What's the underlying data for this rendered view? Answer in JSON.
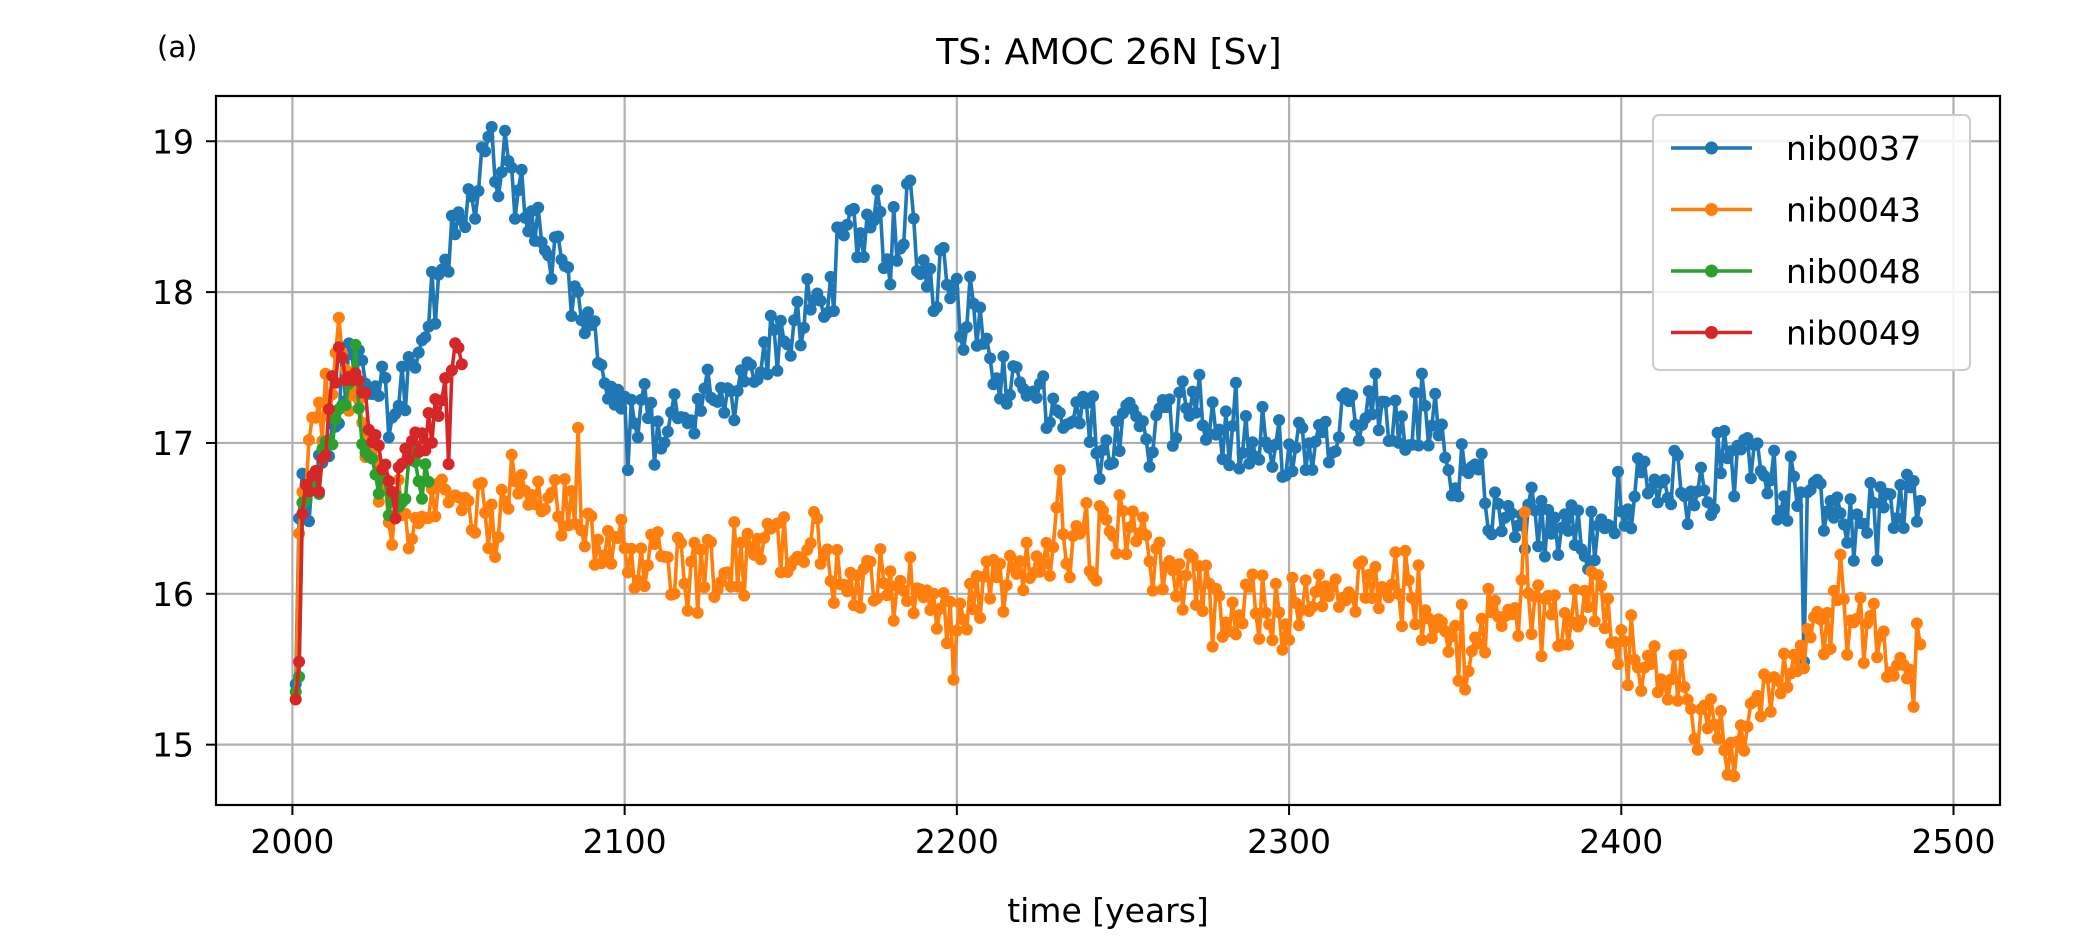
{
  "panel_label": "(a)",
  "chart_data": {
    "type": "line",
    "title": "TS: AMOC 26N [Sv]",
    "xlabel": "time [years]",
    "ylabel": "",
    "xlim": [
      1977,
      2514
    ],
    "ylim": [
      14.6,
      19.3
    ],
    "xticks": [
      2000,
      2100,
      2200,
      2300,
      2400,
      2500
    ],
    "yticks": [
      15,
      16,
      17,
      18,
      19
    ],
    "grid": true,
    "legend_position": "top-right",
    "markers": true,
    "series": [
      {
        "name": "nib0037",
        "color": "#1f77b4",
        "anchors": [
          [
            2001,
            15.4
          ],
          [
            2002,
            16.5
          ],
          [
            2005,
            16.7
          ],
          [
            2010,
            16.9
          ],
          [
            2015,
            17.4
          ],
          [
            2020,
            17.5
          ],
          [
            2025,
            17.4
          ],
          [
            2030,
            17.2
          ],
          [
            2035,
            17.5
          ],
          [
            2040,
            17.8
          ],
          [
            2045,
            18.2
          ],
          [
            2050,
            18.5
          ],
          [
            2055,
            18.6
          ],
          [
            2060,
            18.9
          ],
          [
            2065,
            18.7
          ],
          [
            2070,
            18.5
          ],
          [
            2075,
            18.3
          ],
          [
            2080,
            18.3
          ],
          [
            2085,
            18.0
          ],
          [
            2090,
            17.8
          ],
          [
            2095,
            17.4
          ],
          [
            2100,
            17.2
          ],
          [
            2105,
            17.2
          ],
          [
            2110,
            17.1
          ],
          [
            2115,
            17.2
          ],
          [
            2120,
            17.1
          ],
          [
            2125,
            17.3
          ],
          [
            2130,
            17.2
          ],
          [
            2135,
            17.4
          ],
          [
            2140,
            17.5
          ],
          [
            2145,
            17.6
          ],
          [
            2150,
            17.7
          ],
          [
            2155,
            17.9
          ],
          [
            2160,
            18.0
          ],
          [
            2165,
            18.3
          ],
          [
            2170,
            18.4
          ],
          [
            2175,
            18.4
          ],
          [
            2180,
            18.3
          ],
          [
            2185,
            18.5
          ],
          [
            2190,
            18.2
          ],
          [
            2195,
            18.1
          ],
          [
            2200,
            17.9
          ],
          [
            2205,
            17.8
          ],
          [
            2210,
            17.6
          ],
          [
            2215,
            17.5
          ],
          [
            2220,
            17.4
          ],
          [
            2225,
            17.3
          ],
          [
            2230,
            17.2
          ],
          [
            2235,
            17.1
          ],
          [
            2240,
            17.1
          ],
          [
            2245,
            17.0
          ],
          [
            2250,
            17.05
          ],
          [
            2255,
            17.1
          ],
          [
            2260,
            17.1
          ],
          [
            2265,
            17.15
          ],
          [
            2270,
            17.2
          ],
          [
            2275,
            17.2
          ],
          [
            2280,
            17.1
          ],
          [
            2285,
            17.1
          ],
          [
            2290,
            17.1
          ],
          [
            2295,
            17.0
          ],
          [
            2300,
            16.9
          ],
          [
            2305,
            17.0
          ],
          [
            2310,
            17.0
          ],
          [
            2315,
            17.1
          ],
          [
            2320,
            17.2
          ],
          [
            2325,
            17.2
          ],
          [
            2330,
            17.1
          ],
          [
            2335,
            17.1
          ],
          [
            2340,
            17.2
          ],
          [
            2345,
            17.0
          ],
          [
            2350,
            16.8
          ],
          [
            2355,
            16.8
          ],
          [
            2360,
            16.6
          ],
          [
            2365,
            16.6
          ],
          [
            2370,
            16.5
          ],
          [
            2375,
            16.5
          ],
          [
            2380,
            16.5
          ],
          [
            2385,
            16.4
          ],
          [
            2390,
            16.4
          ],
          [
            2395,
            16.5
          ],
          [
            2400,
            16.6
          ],
          [
            2405,
            16.7
          ],
          [
            2410,
            16.8
          ],
          [
            2415,
            16.8
          ],
          [
            2420,
            16.7
          ],
          [
            2425,
            16.8
          ],
          [
            2430,
            16.8
          ],
          [
            2435,
            16.9
          ],
          [
            2440,
            16.8
          ],
          [
            2445,
            16.8
          ],
          [
            2450,
            16.7
          ],
          [
            2455,
            16.7
          ],
          [
            2460,
            16.6
          ],
          [
            2465,
            16.5
          ],
          [
            2470,
            16.5
          ],
          [
            2475,
            16.5
          ],
          [
            2480,
            16.6
          ],
          [
            2485,
            16.6
          ],
          [
            2490,
            16.6
          ]
        ],
        "extremes": [
          [
            2064,
            19.07
          ],
          [
            2059,
            19.03
          ],
          [
            2186,
            18.74
          ],
          [
            2101,
            16.82
          ],
          [
            2326,
            17.46
          ],
          [
            2340,
            17.46
          ],
          [
            2389,
            16.25
          ],
          [
            2477,
            16.22
          ],
          [
            2455,
            15.55
          ]
        ]
      },
      {
        "name": "nib0043",
        "color": "#ff7f0e",
        "anchors": [
          [
            2001,
            15.3
          ],
          [
            2002,
            16.4
          ],
          [
            2005,
            16.9
          ],
          [
            2010,
            17.3
          ],
          [
            2013,
            17.8
          ],
          [
            2016,
            17.5
          ],
          [
            2020,
            17.2
          ],
          [
            2025,
            16.7
          ],
          [
            2030,
            16.5
          ],
          [
            2035,
            16.5
          ],
          [
            2040,
            16.6
          ],
          [
            2045,
            16.7
          ],
          [
            2050,
            16.6
          ],
          [
            2055,
            16.6
          ],
          [
            2060,
            16.5
          ],
          [
            2065,
            16.7
          ],
          [
            2070,
            16.7
          ],
          [
            2075,
            16.6
          ],
          [
            2080,
            16.5
          ],
          [
            2085,
            16.6
          ],
          [
            2090,
            16.4
          ],
          [
            2095,
            16.3
          ],
          [
            2100,
            16.3
          ],
          [
            2105,
            16.2
          ],
          [
            2110,
            16.3
          ],
          [
            2115,
            16.2
          ],
          [
            2120,
            16.1
          ],
          [
            2125,
            16.2
          ],
          [
            2130,
            16.2
          ],
          [
            2135,
            16.2
          ],
          [
            2140,
            16.3
          ],
          [
            2145,
            16.4
          ],
          [
            2150,
            16.3
          ],
          [
            2155,
            16.3
          ],
          [
            2160,
            16.2
          ],
          [
            2165,
            16.1
          ],
          [
            2170,
            16.0
          ],
          [
            2175,
            16.1
          ],
          [
            2180,
            16.1
          ],
          [
            2185,
            16.1
          ],
          [
            2190,
            15.9
          ],
          [
            2195,
            15.9
          ],
          [
            2200,
            15.8
          ],
          [
            2205,
            15.9
          ],
          [
            2210,
            16.1
          ],
          [
            2215,
            16.1
          ],
          [
            2220,
            16.1
          ],
          [
            2225,
            16.2
          ],
          [
            2230,
            16.3
          ],
          [
            2235,
            16.4
          ],
          [
            2240,
            16.3
          ],
          [
            2245,
            16.4
          ],
          [
            2250,
            16.4
          ],
          [
            2255,
            16.3
          ],
          [
            2260,
            16.2
          ],
          [
            2265,
            16.2
          ],
          [
            2270,
            16.1
          ],
          [
            2275,
            15.9
          ],
          [
            2280,
            15.8
          ],
          [
            2285,
            15.9
          ],
          [
            2290,
            15.9
          ],
          [
            2295,
            15.8
          ],
          [
            2300,
            15.9
          ],
          [
            2305,
            16.0
          ],
          [
            2310,
            15.9
          ],
          [
            2315,
            16.0
          ],
          [
            2320,
            16.0
          ],
          [
            2325,
            16.0
          ],
          [
            2330,
            16.0
          ],
          [
            2335,
            16.0
          ],
          [
            2340,
            15.9
          ],
          [
            2345,
            15.8
          ],
          [
            2350,
            15.7
          ],
          [
            2355,
            15.6
          ],
          [
            2360,
            15.9
          ],
          [
            2365,
            15.8
          ],
          [
            2370,
            15.9
          ],
          [
            2375,
            15.9
          ],
          [
            2380,
            15.8
          ],
          [
            2385,
            15.9
          ],
          [
            2390,
            15.9
          ],
          [
            2395,
            15.9
          ],
          [
            2400,
            15.7
          ],
          [
            2405,
            15.5
          ],
          [
            2410,
            15.4
          ],
          [
            2415,
            15.4
          ],
          [
            2420,
            15.3
          ],
          [
            2425,
            15.2
          ],
          [
            2430,
            15.1
          ],
          [
            2435,
            15.1
          ],
          [
            2440,
            15.3
          ],
          [
            2445,
            15.3
          ],
          [
            2450,
            15.5
          ],
          [
            2455,
            15.6
          ],
          [
            2460,
            15.7
          ],
          [
            2465,
            15.9
          ],
          [
            2470,
            15.8
          ],
          [
            2475,
            15.8
          ],
          [
            2480,
            15.7
          ],
          [
            2485,
            15.5
          ],
          [
            2490,
            15.7
          ]
        ],
        "extremes": [
          [
            2014,
            17.83
          ],
          [
            2086,
            17.1
          ],
          [
            2199,
            15.43
          ],
          [
            2231,
            16.82
          ],
          [
            2371,
            16.54
          ],
          [
            2432,
            14.8
          ],
          [
            2434,
            14.79
          ],
          [
            2466,
            16.26
          ],
          [
            2488,
            15.25
          ],
          [
            2277,
            15.65
          ]
        ]
      },
      {
        "name": "nib0048",
        "color": "#2ca02c",
        "anchors": [
          [
            2001,
            15.35
          ],
          [
            2002,
            15.45
          ],
          [
            2003,
            16.5
          ],
          [
            2005,
            16.7
          ],
          [
            2008,
            16.8
          ],
          [
            2010,
            16.9
          ],
          [
            2012,
            17.0
          ],
          [
            2014,
            17.2
          ],
          [
            2016,
            17.3
          ],
          [
            2018,
            17.5
          ],
          [
            2020,
            17.2
          ],
          [
            2022,
            17.0
          ],
          [
            2024,
            16.8
          ],
          [
            2026,
            16.8
          ],
          [
            2028,
            16.7
          ],
          [
            2030,
            16.6
          ],
          [
            2032,
            16.6
          ],
          [
            2034,
            16.7
          ],
          [
            2036,
            16.9
          ],
          [
            2038,
            16.8
          ],
          [
            2040,
            16.8
          ],
          [
            2041,
            16.7
          ]
        ],
        "extremes": [
          [
            2019,
            17.65
          ],
          [
            2029,
            16.52
          ],
          [
            2039,
            16.63
          ]
        ]
      },
      {
        "name": "nib0049",
        "color": "#d62728",
        "anchors": [
          [
            2001,
            15.3
          ],
          [
            2002,
            15.55
          ],
          [
            2003,
            16.6
          ],
          [
            2005,
            16.7
          ],
          [
            2008,
            16.8
          ],
          [
            2010,
            17.0
          ],
          [
            2012,
            17.3
          ],
          [
            2014,
            17.5
          ],
          [
            2016,
            17.4
          ],
          [
            2018,
            17.5
          ],
          [
            2020,
            17.4
          ],
          [
            2022,
            17.3
          ],
          [
            2024,
            17.0
          ],
          [
            2026,
            16.9
          ],
          [
            2028,
            16.8
          ],
          [
            2030,
            16.7
          ],
          [
            2032,
            16.8
          ],
          [
            2034,
            16.9
          ],
          [
            2036,
            17.0
          ],
          [
            2038,
            17.0
          ],
          [
            2040,
            17.0
          ],
          [
            2042,
            17.1
          ],
          [
            2044,
            17.2
          ],
          [
            2046,
            17.3
          ],
          [
            2048,
            17.5
          ],
          [
            2050,
            17.6
          ],
          [
            2051,
            17.66
          ]
        ],
        "extremes": [
          [
            2046,
            17.43
          ],
          [
            2047,
            16.86
          ],
          [
            2031,
            16.5
          ]
        ]
      }
    ]
  }
}
